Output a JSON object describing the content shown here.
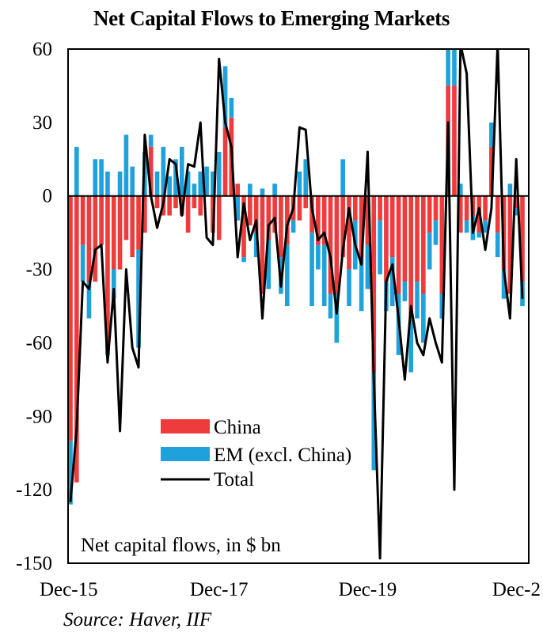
{
  "title": "Net Capital Flows to Emerging Markets",
  "source": "Source: Haver, IIF",
  "colors": {
    "china": "#ee3b3b",
    "em": "#1fa2db",
    "total": "#000000"
  },
  "chart_data": {
    "type": "bar",
    "stacked": true,
    "title": "Net Capital Flows to Emerging Markets",
    "annotation": "Net capital flows, in $ bn",
    "ylim": [
      -150,
      60
    ],
    "yticks": [
      60,
      30,
      0,
      -30,
      -60,
      -90,
      -120,
      -150
    ],
    "xtick_labels": [
      "Dec-15",
      "Dec-17",
      "Dec-19",
      "Dec-2"
    ],
    "xtick_months": [
      "2015-12",
      "2017-12",
      "2019-12",
      "2021-12"
    ],
    "grid": false,
    "legend_position": "lower-center",
    "months": [
      "2015-12",
      "2016-01",
      "2016-02",
      "2016-03",
      "2016-04",
      "2016-05",
      "2016-06",
      "2016-07",
      "2016-08",
      "2016-09",
      "2016-10",
      "2016-11",
      "2016-12",
      "2017-01",
      "2017-02",
      "2017-03",
      "2017-04",
      "2017-05",
      "2017-06",
      "2017-07",
      "2017-08",
      "2017-09",
      "2017-10",
      "2017-11",
      "2017-12",
      "2018-01",
      "2018-02",
      "2018-03",
      "2018-04",
      "2018-05",
      "2018-06",
      "2018-07",
      "2018-08",
      "2018-09",
      "2018-10",
      "2018-11",
      "2018-12",
      "2019-01",
      "2019-02",
      "2019-03",
      "2019-04",
      "2019-05",
      "2019-06",
      "2019-07",
      "2019-08",
      "2019-09",
      "2019-10",
      "2019-11",
      "2019-12",
      "2020-01",
      "2020-02",
      "2020-03",
      "2020-04",
      "2020-05",
      "2020-06",
      "2020-07",
      "2020-08",
      "2020-09",
      "2020-10",
      "2020-11",
      "2020-12",
      "2021-01",
      "2021-02",
      "2021-03",
      "2021-04",
      "2021-05",
      "2021-06",
      "2021-07",
      "2021-08",
      "2021-09",
      "2021-10",
      "2021-11",
      "2021-12",
      "2022-01"
    ],
    "series": [
      {
        "name": "China",
        "kind": "bar",
        "values": [
          -100,
          -117,
          -20,
          -35,
          -35,
          -20,
          -65,
          -30,
          -30,
          -18,
          -25,
          -22,
          -15,
          20,
          -5,
          -8,
          -8,
          -5,
          -8,
          -15,
          -5,
          -8,
          0,
          -15,
          -18,
          28,
          32,
          5,
          -25,
          -12,
          -15,
          -40,
          -18,
          -15,
          -25,
          -20,
          -10,
          -10,
          -5,
          -15,
          -20,
          -20,
          -40,
          -40,
          -25,
          -30,
          -10,
          -25,
          -20,
          -72,
          -10,
          -35,
          -25,
          -40,
          -35,
          -50,
          -35,
          -40,
          -15,
          -10,
          -40,
          45,
          45,
          -15,
          -10,
          -8,
          -15,
          -10,
          20,
          -15,
          -30,
          -40,
          -5,
          -35
        ]
      },
      {
        "name": "EM (excl. China)",
        "kind": "bar",
        "values": [
          -26,
          20,
          -15,
          -15,
          15,
          15,
          10,
          -12,
          10,
          25,
          12,
          -40,
          18,
          5,
          10,
          20,
          8,
          15,
          20,
          10,
          5,
          10,
          12,
          10,
          18,
          25,
          8,
          -10,
          -2,
          5,
          -10,
          3,
          -20,
          5,
          -15,
          -25,
          -5,
          10,
          15,
          -30,
          -10,
          -25,
          -10,
          -20,
          15,
          -15,
          -20,
          -22,
          -18,
          -40,
          -22,
          -12,
          -20,
          -25,
          -8,
          -22,
          -15,
          -20,
          -15,
          -10,
          -10,
          15,
          20,
          5,
          -5,
          -10,
          -2,
          -5,
          10,
          -10,
          -12,
          5,
          -3,
          -10
        ]
      },
      {
        "name": "Total",
        "kind": "line",
        "values": [
          -125,
          -95,
          -35,
          -38,
          -22,
          -20,
          -68,
          -38,
          -96,
          -30,
          -62,
          -70,
          25,
          0,
          -13,
          -3,
          15,
          13,
          -8,
          13,
          12,
          30,
          -17,
          -20,
          56,
          30,
          20,
          -25,
          -3,
          -18,
          -10,
          -50,
          -12,
          -9,
          -37,
          -12,
          -5,
          28,
          27,
          -5,
          -18,
          -15,
          -25,
          -48,
          -22,
          -5,
          -20,
          -28,
          18,
          -75,
          -148,
          -35,
          -28,
          -50,
          -75,
          -45,
          -60,
          -65,
          -50,
          -60,
          -68,
          30,
          -120,
          62,
          50,
          -15,
          -5,
          -22,
          -5,
          62,
          -30,
          -50,
          15,
          -42
        ]
      }
    ]
  }
}
